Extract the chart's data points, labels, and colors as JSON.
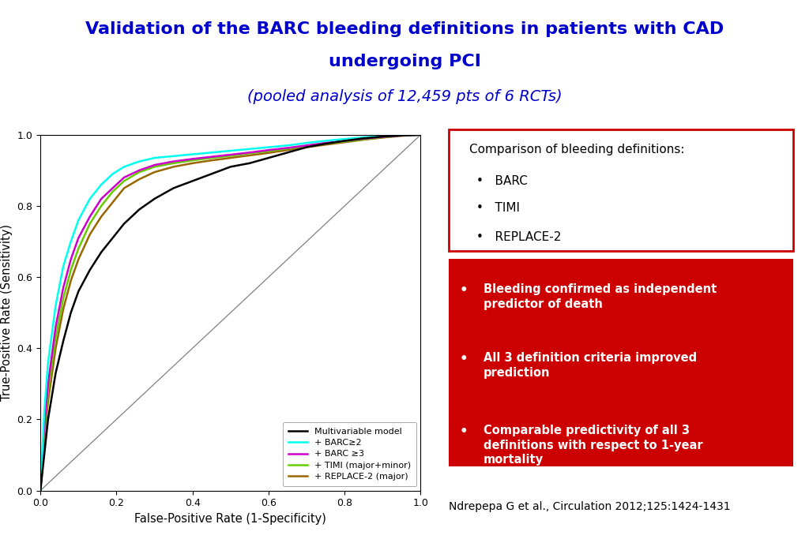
{
  "title_line1": "Validation of the BARC bleeding definitions in patients with CAD",
  "title_line2": "undergoing PCI",
  "subtitle": "(pooled analysis of 12,459 pts of 6 RCTs)",
  "title_color": "#0000CC",
  "subtitle_color": "#0000CC",
  "divider_color": "#CC0000",
  "bg_color": "#FFFFFF",
  "roc_curves": {
    "multivariable": {
      "color": "#000000",
      "label": "Multivariable model",
      "lw": 1.8
    },
    "barc2": {
      "color": "#00FFEE",
      "label": "+ BARC≥2",
      "lw": 1.8
    },
    "barc3": {
      "color": "#CC00CC",
      "label": "+ BARC ≥3",
      "lw": 1.8
    },
    "timi": {
      "color": "#66CC00",
      "label": "+ TIMI (major+minor)",
      "lw": 1.8
    },
    "replace2": {
      "color": "#996600",
      "label": "+ REPLACE-2 (major)",
      "lw": 1.8
    }
  },
  "comparison_box_title": "Comparison of bleeding definitions:",
  "comparison_items": [
    "BARC",
    "TIMI",
    "REPLACE-2"
  ],
  "red_box_items": [
    "Bleeding confirmed as independent\npredictor of death",
    "All 3 definition criteria improved\nprediction",
    "Comparable predictivity of all 3\ndefinitions with respect to 1-year\nmortality"
  ],
  "red_box_color": "#CC0000",
  "citation": "Ndrepepa G et al., Circulation 2012;125:1424-1431",
  "xlabel": "False-Positive Rate (1-Specificity)",
  "ylabel": "True-Positive Rate (Sensitivity)"
}
